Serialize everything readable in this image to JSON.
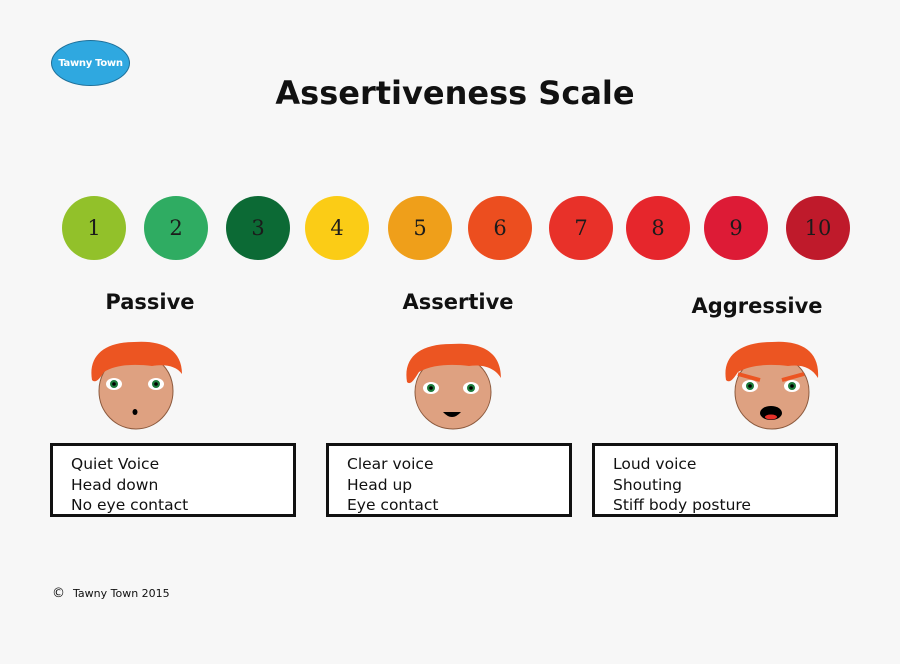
{
  "logo": {
    "text": "Tawny Town",
    "color": "#2fa8e0"
  },
  "title": "Assertiveness Scale",
  "scale": [
    {
      "n": "1",
      "color": "#92c12a"
    },
    {
      "n": "2",
      "color": "#2fac62"
    },
    {
      "n": "3",
      "color": "#0c6a35"
    },
    {
      "n": "4",
      "color": "#fbcc16"
    },
    {
      "n": "5",
      "color": "#ef9f1a"
    },
    {
      "n": "6",
      "color": "#ec4e1f"
    },
    {
      "n": "7",
      "color": "#e83129"
    },
    {
      "n": "8",
      "color": "#e6262c"
    },
    {
      "n": "9",
      "color": "#dd1b36"
    },
    {
      "n": "10",
      "color": "#bf1a2b"
    }
  ],
  "categories": [
    {
      "label": "Passive",
      "items": [
        "Quiet Voice",
        "Head down",
        "No eye contact"
      ]
    },
    {
      "label": "Assertive",
      "items": [
        "Clear voice",
        "Head up",
        "Eye contact"
      ]
    },
    {
      "label": "Aggressive",
      "items": [
        "Loud voice",
        "Shouting",
        "Stiff body posture"
      ]
    }
  ],
  "colors": {
    "hair": "#ec5522",
    "skin": "#dea181",
    "eye_iris": "#1c7a3a"
  },
  "copyright": {
    "symbol": "©",
    "text": "Tawny Town 2015"
  }
}
